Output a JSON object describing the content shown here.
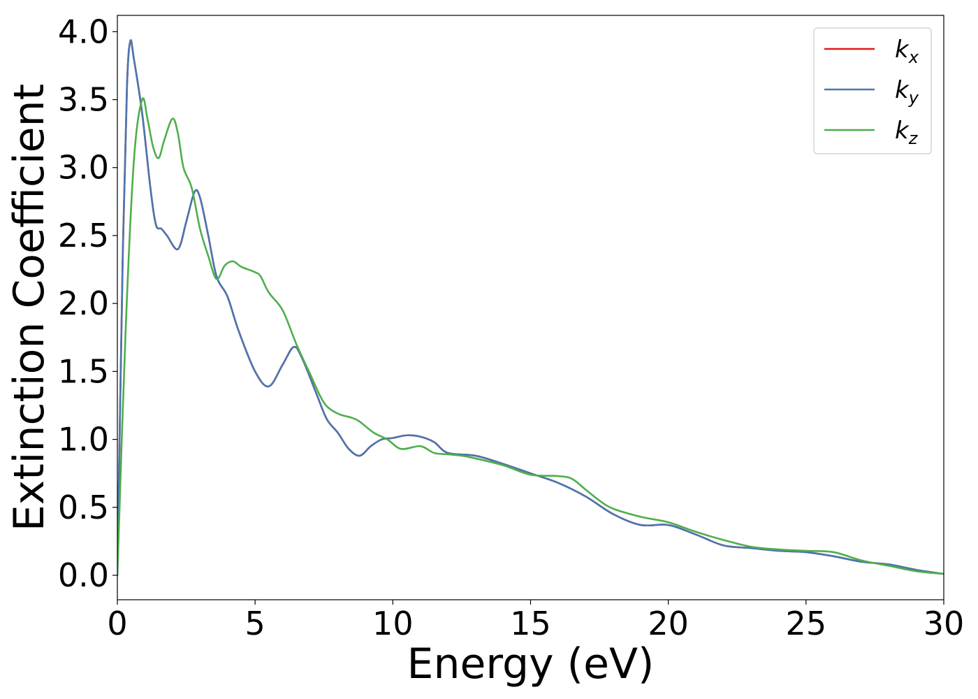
{
  "chart_data": {
    "type": "line",
    "title": "",
    "xlabel": "Energy (eV)",
    "ylabel": "Extinction Coefficient",
    "xlim": [
      0,
      30
    ],
    "ylim": [
      -0.18,
      4.12
    ],
    "xticks": [
      0,
      5,
      10,
      15,
      20,
      25,
      30
    ],
    "xtick_labels": [
      "0",
      "5",
      "10",
      "15",
      "20",
      "25",
      "30"
    ],
    "yticks": [
      0.0,
      0.5,
      1.0,
      1.5,
      2.0,
      2.5,
      3.0,
      3.5,
      4.0
    ],
    "ytick_labels": [
      "0.0",
      "0.5",
      "1.0",
      "1.5",
      "2.0",
      "2.5",
      "3.0",
      "3.5",
      "4.0"
    ],
    "grid": false,
    "legend_position": "top-right",
    "series": [
      {
        "name": "k_x",
        "legend_base": "k",
        "legend_sub": "x",
        "color": "#e41a1c",
        "points": [
          [
            0.0,
            0.0
          ],
          [
            0.2,
            2.4
          ],
          [
            0.35,
            3.6
          ],
          [
            0.47,
            3.93
          ],
          [
            0.6,
            3.8
          ],
          [
            0.9,
            3.4
          ],
          [
            1.2,
            2.85
          ],
          [
            1.4,
            2.58
          ],
          [
            1.6,
            2.55
          ],
          [
            1.8,
            2.5
          ],
          [
            2.2,
            2.4
          ],
          [
            2.5,
            2.6
          ],
          [
            2.8,
            2.82
          ],
          [
            3.0,
            2.78
          ],
          [
            3.3,
            2.5
          ],
          [
            3.6,
            2.2
          ],
          [
            4.0,
            2.05
          ],
          [
            4.4,
            1.8
          ],
          [
            5.0,
            1.5
          ],
          [
            5.5,
            1.39
          ],
          [
            6.0,
            1.55
          ],
          [
            6.4,
            1.68
          ],
          [
            6.7,
            1.6
          ],
          [
            7.2,
            1.35
          ],
          [
            7.6,
            1.15
          ],
          [
            8.0,
            1.05
          ],
          [
            8.4,
            0.93
          ],
          [
            8.8,
            0.88
          ],
          [
            9.2,
            0.95
          ],
          [
            9.6,
            1.0
          ],
          [
            10.0,
            1.01
          ],
          [
            10.5,
            1.03
          ],
          [
            11.0,
            1.02
          ],
          [
            11.5,
            0.98
          ],
          [
            12.0,
            0.9
          ],
          [
            13.0,
            0.88
          ],
          [
            14.0,
            0.82
          ],
          [
            15.0,
            0.75
          ],
          [
            16.0,
            0.68
          ],
          [
            17.0,
            0.58
          ],
          [
            18.0,
            0.45
          ],
          [
            19.0,
            0.37
          ],
          [
            20.0,
            0.37
          ],
          [
            21.0,
            0.3
          ],
          [
            22.0,
            0.22
          ],
          [
            23.0,
            0.2
          ],
          [
            24.0,
            0.18
          ],
          [
            25.0,
            0.17
          ],
          [
            26.0,
            0.14
          ],
          [
            27.0,
            0.1
          ],
          [
            28.0,
            0.08
          ],
          [
            29.0,
            0.04
          ],
          [
            30.0,
            0.01
          ]
        ]
      },
      {
        "name": "k_y",
        "legend_base": "k",
        "legend_sub": "y",
        "color": "#4a76b0",
        "points": [
          [
            0.0,
            0.0
          ],
          [
            0.2,
            2.4
          ],
          [
            0.35,
            3.6
          ],
          [
            0.47,
            3.93
          ],
          [
            0.6,
            3.8
          ],
          [
            0.9,
            3.4
          ],
          [
            1.2,
            2.85
          ],
          [
            1.4,
            2.58
          ],
          [
            1.6,
            2.55
          ],
          [
            1.8,
            2.5
          ],
          [
            2.2,
            2.4
          ],
          [
            2.5,
            2.6
          ],
          [
            2.8,
            2.82
          ],
          [
            3.0,
            2.78
          ],
          [
            3.3,
            2.5
          ],
          [
            3.6,
            2.2
          ],
          [
            4.0,
            2.05
          ],
          [
            4.4,
            1.8
          ],
          [
            5.0,
            1.5
          ],
          [
            5.5,
            1.39
          ],
          [
            6.0,
            1.55
          ],
          [
            6.4,
            1.68
          ],
          [
            6.7,
            1.6
          ],
          [
            7.2,
            1.35
          ],
          [
            7.6,
            1.15
          ],
          [
            8.0,
            1.05
          ],
          [
            8.4,
            0.93
          ],
          [
            8.8,
            0.88
          ],
          [
            9.2,
            0.95
          ],
          [
            9.6,
            1.0
          ],
          [
            10.0,
            1.01
          ],
          [
            10.5,
            1.03
          ],
          [
            11.0,
            1.02
          ],
          [
            11.5,
            0.98
          ],
          [
            12.0,
            0.9
          ],
          [
            13.0,
            0.88
          ],
          [
            14.0,
            0.82
          ],
          [
            15.0,
            0.75
          ],
          [
            16.0,
            0.68
          ],
          [
            17.0,
            0.58
          ],
          [
            18.0,
            0.45
          ],
          [
            19.0,
            0.37
          ],
          [
            20.0,
            0.37
          ],
          [
            21.0,
            0.3
          ],
          [
            22.0,
            0.22
          ],
          [
            23.0,
            0.2
          ],
          [
            24.0,
            0.18
          ],
          [
            25.0,
            0.17
          ],
          [
            26.0,
            0.14
          ],
          [
            27.0,
            0.1
          ],
          [
            28.0,
            0.08
          ],
          [
            29.0,
            0.04
          ],
          [
            30.0,
            0.01
          ]
        ]
      },
      {
        "name": "k_z",
        "legend_base": "k",
        "legend_sub": "z",
        "color": "#4daf4a",
        "points": [
          [
            0.0,
            0.0
          ],
          [
            0.3,
            1.8
          ],
          [
            0.6,
            3.05
          ],
          [
            0.9,
            3.5
          ],
          [
            1.1,
            3.35
          ],
          [
            1.3,
            3.15
          ],
          [
            1.5,
            3.07
          ],
          [
            1.7,
            3.2
          ],
          [
            2.0,
            3.36
          ],
          [
            2.2,
            3.25
          ],
          [
            2.4,
            3.0
          ],
          [
            2.7,
            2.85
          ],
          [
            3.0,
            2.55
          ],
          [
            3.3,
            2.35
          ],
          [
            3.6,
            2.18
          ],
          [
            3.9,
            2.28
          ],
          [
            4.2,
            2.31
          ],
          [
            4.5,
            2.27
          ],
          [
            5.0,
            2.23
          ],
          [
            5.2,
            2.2
          ],
          [
            5.5,
            2.08
          ],
          [
            6.0,
            1.95
          ],
          [
            6.5,
            1.7
          ],
          [
            7.0,
            1.48
          ],
          [
            7.5,
            1.27
          ],
          [
            8.0,
            1.19
          ],
          [
            8.5,
            1.16
          ],
          [
            8.8,
            1.13
          ],
          [
            9.3,
            1.05
          ],
          [
            9.8,
            1.0
          ],
          [
            10.3,
            0.93
          ],
          [
            11.0,
            0.95
          ],
          [
            11.5,
            0.9
          ],
          [
            12.0,
            0.89
          ],
          [
            12.5,
            0.88
          ],
          [
            13.0,
            0.86
          ],
          [
            14.0,
            0.81
          ],
          [
            15.0,
            0.74
          ],
          [
            16.0,
            0.73
          ],
          [
            16.5,
            0.71
          ],
          [
            17.0,
            0.63
          ],
          [
            17.5,
            0.55
          ],
          [
            18.0,
            0.49
          ],
          [
            19.0,
            0.43
          ],
          [
            20.0,
            0.39
          ],
          [
            21.0,
            0.32
          ],
          [
            22.0,
            0.26
          ],
          [
            23.0,
            0.21
          ],
          [
            24.0,
            0.19
          ],
          [
            25.0,
            0.18
          ],
          [
            26.0,
            0.17
          ],
          [
            27.0,
            0.11
          ],
          [
            28.0,
            0.07
          ],
          [
            29.0,
            0.03
          ],
          [
            30.0,
            0.01
          ]
        ]
      }
    ]
  }
}
